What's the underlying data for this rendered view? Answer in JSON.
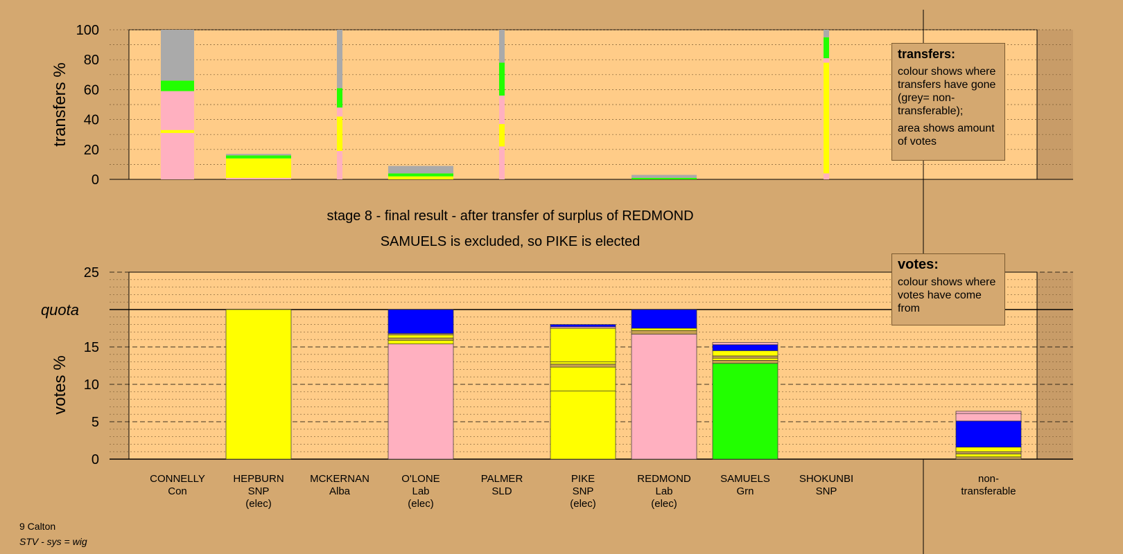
{
  "chart_data": [
    {
      "type": "bar",
      "stacked": true,
      "ylabel": "transfers %",
      "ylim": [
        0,
        100
      ],
      "yticks": [
        0,
        20,
        40,
        60,
        80,
        100
      ],
      "categories": [
        "CONNELLY",
        "HEPBURN",
        "MCKERNAN",
        "O'LONE",
        "PALMER",
        "PIKE",
        "REDMOND",
        "SAMUELS",
        "SHOKUNBI"
      ],
      "series": [
        {
          "color": "#ffb0c0",
          "values": [
            31,
            1,
            19,
            0,
            22,
            0,
            0,
            0,
            4
          ]
        },
        {
          "color": "#ffff00",
          "values": [
            2,
            13,
            23,
            2,
            15,
            0,
            0,
            0,
            74
          ]
        },
        {
          "color": "#ffb0c0",
          "values": [
            26,
            0,
            6,
            0,
            19,
            0,
            0,
            0,
            3
          ]
        },
        {
          "color": "#22ff00",
          "values": [
            7,
            2,
            13,
            2,
            22,
            0,
            1,
            0,
            14
          ]
        },
        {
          "color": "#aaaaaa",
          "values": [
            34,
            1,
            39,
            5,
            22,
            0,
            2,
            0,
            5
          ]
        }
      ],
      "widths": [
        "wide",
        "wide",
        "narrow",
        "wide",
        "narrow",
        "wide",
        "wide",
        "wide",
        "narrow"
      ]
    },
    {
      "type": "bar",
      "stacked": true,
      "ylabel": "votes %",
      "ylim": [
        0,
        25
      ],
      "yticks": [
        0,
        5,
        10,
        15,
        20,
        25
      ],
      "quota": 20,
      "quota_label": "quota",
      "candidates": [
        {
          "name": "CONNELLY",
          "party": "Con",
          "note": "",
          "segments": []
        },
        {
          "name": "HEPBURN",
          "party": "SNP",
          "note": "(elec)",
          "segments": [
            {
              "value": 20,
              "color": "#ffff00"
            }
          ]
        },
        {
          "name": "MCKERNAN",
          "party": "Alba",
          "note": "",
          "segments": []
        },
        {
          "name": "O'LONE",
          "party": "Lab",
          "note": "(elec)",
          "segments": [
            {
              "value": 15.4,
              "color": "#ffb0c0"
            },
            {
              "value": 0.5,
              "color": "#ffff00"
            },
            {
              "value": 0.3,
              "color": "#c8a050"
            },
            {
              "value": 0.4,
              "color": "#ffff00"
            },
            {
              "value": 0.2,
              "color": "#c8a050"
            },
            {
              "value": 3.2,
              "color": "#0000ff"
            }
          ]
        },
        {
          "name": "PALMER",
          "party": "SLD",
          "note": "",
          "segments": []
        },
        {
          "name": "PIKE",
          "party": "SNP",
          "note": "(elec)",
          "segments": [
            {
              "value": 9.1,
              "color": "#ffff00"
            },
            {
              "value": 3.2,
              "color": "#ffff00"
            },
            {
              "value": 0.4,
              "color": "#c8a050"
            },
            {
              "value": 0.3,
              "color": "#ffff00"
            },
            {
              "value": 4.5,
              "color": "#ffff00"
            },
            {
              "value": 0.2,
              "color": "#ffb0c0"
            },
            {
              "value": 0.3,
              "color": "#0000ff"
            }
          ]
        },
        {
          "name": "REDMOND",
          "party": "Lab",
          "note": "(elec)",
          "segments": [
            {
              "value": 16.7,
              "color": "#ffb0c0"
            },
            {
              "value": 0.5,
              "color": "#c8a050"
            },
            {
              "value": 0.3,
              "color": "#ffff00"
            },
            {
              "value": 2.5,
              "color": "#0000ff"
            }
          ]
        },
        {
          "name": "SAMUELS",
          "party": "Grn",
          "note": "",
          "segments": [
            {
              "value": 12.8,
              "color": "#22ff00"
            },
            {
              "value": 0.4,
              "color": "#c8a050"
            },
            {
              "value": 0.3,
              "color": "#ffff00"
            },
            {
              "value": 0.3,
              "color": "#c8a050"
            },
            {
              "value": 0.7,
              "color": "#ffff00"
            },
            {
              "value": 0.8,
              "color": "#0000ff"
            },
            {
              "value": 0.3,
              "color": "#ffb0c0"
            }
          ]
        },
        {
          "name": "SHOKUNBI",
          "party": "SNP",
          "note": "",
          "segments": []
        },
        {
          "name": "non-",
          "party": "transferable",
          "note": "",
          "nontransferable": true,
          "segments": [
            {
              "value": 0.3,
              "color": "#c8a050"
            },
            {
              "value": 0.4,
              "color": "#ffff00"
            },
            {
              "value": 0.3,
              "color": "#c8a050"
            },
            {
              "value": 0.6,
              "color": "#ffff00"
            },
            {
              "value": 3.5,
              "color": "#0000ff"
            },
            {
              "value": 1.0,
              "color": "#ffb0c0"
            },
            {
              "value": 0.3,
              "color": "#ffb0c0"
            }
          ]
        }
      ]
    }
  ],
  "titles": {
    "line1": "stage 8 - final result - after transfer of surplus of REDMOND",
    "line2": "SAMUELS is excluded, so PIKE is elected"
  },
  "legend_transfers": {
    "heading": "transfers:",
    "text1": "colour shows where transfers have gone (grey= non-transferable);",
    "text2": "area shows amount of votes"
  },
  "legend_votes": {
    "heading": "votes:",
    "text1": "colour shows where votes have come from"
  },
  "footer": {
    "ward": "9 Calton",
    "system": "STV - sys = wig"
  },
  "colors": {
    "background": "#d4a870",
    "plot_background": "#ffcc88"
  }
}
